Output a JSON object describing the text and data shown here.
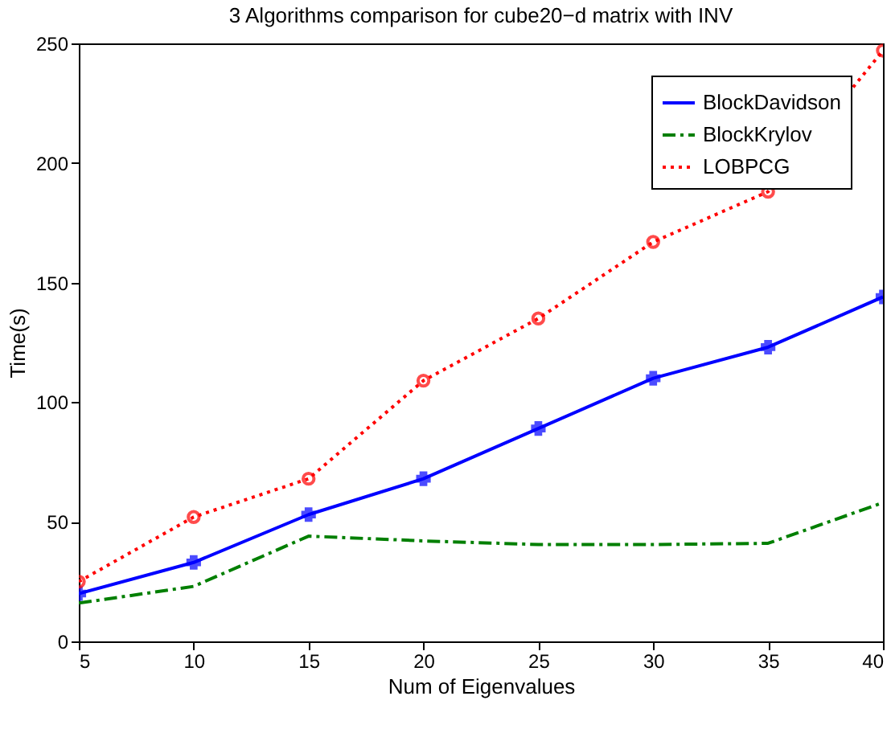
{
  "chart_data": {
    "type": "line",
    "title": "3 Algorithms comparison for cube20−d matrix with INV",
    "xlabel": "Num of Eigenvalues",
    "ylabel": "Time(s)",
    "x": [
      5,
      10,
      15,
      20,
      25,
      30,
      35,
      40
    ],
    "series": [
      {
        "name": "BlockDavidson",
        "color": "#0000ff",
        "marker": "cross",
        "line_style": "solid",
        "values": [
          20,
          33,
          53,
          68,
          89,
          110,
          123,
          144
        ]
      },
      {
        "name": "BlockKrylov",
        "color": "#007f00",
        "marker": "none",
        "line_style": "dashed",
        "values": [
          16,
          23,
          44,
          42,
          40.5,
          40.5,
          41,
          58
        ]
      },
      {
        "name": "LOBPCG",
        "color": "#ff0000",
        "marker": "circle",
        "line_style": "dotted",
        "values": [
          25,
          52,
          68,
          109,
          135,
          167,
          188,
          247
        ]
      }
    ],
    "xlim": [
      5,
      40
    ],
    "xticks": [
      5,
      10,
      15,
      20,
      25,
      30,
      35,
      40
    ],
    "ylim": [
      0,
      250
    ],
    "yticks": [
      0,
      50,
      100,
      150,
      200,
      250
    ],
    "grid": false,
    "legend": "top right"
  }
}
